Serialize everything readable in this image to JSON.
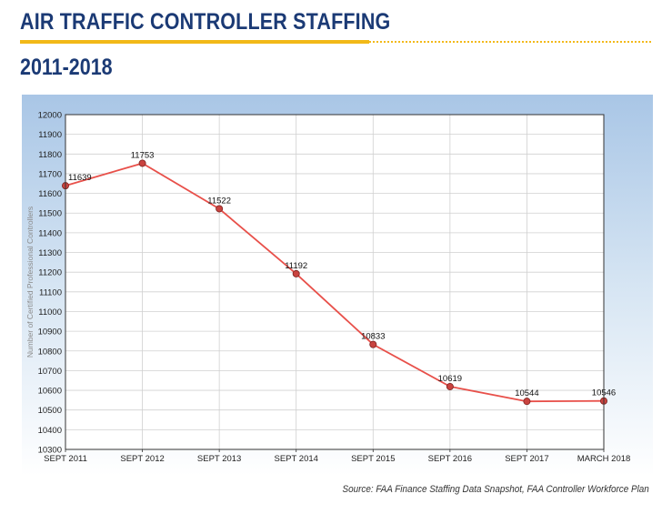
{
  "header": {
    "title": "AIR TRAFFIC CONTROLLER STAFFING",
    "subtitle": "2011-2018"
  },
  "colors": {
    "title": "#1b3a75",
    "accent_rule": "#f2b918",
    "line": "#e8504a",
    "marker_fill": "#c9433f",
    "plot_bg": "#ffffff"
  },
  "chart_data": {
    "type": "line",
    "title": "",
    "xlabel": "",
    "ylabel": "Number of Certified Professional Controllers",
    "categories": [
      "SEPT 2011",
      "SEPT 2012",
      "SEPT 2013",
      "SEPT 2014",
      "SEPT 2015",
      "SEPT 2016",
      "SEPT 2017",
      "MARCH 2018"
    ],
    "series": [
      {
        "values": [
          11639,
          11753,
          11522,
          11192,
          10833,
          10619,
          10544,
          10546
        ]
      }
    ],
    "ylim": [
      10300,
      12000
    ],
    "yticks": [
      10300,
      10400,
      10500,
      10600,
      10700,
      10800,
      10900,
      11000,
      11100,
      11200,
      11300,
      11400,
      11500,
      11600,
      11700,
      11800,
      11900,
      12000
    ],
    "grid": true,
    "legend": "none"
  },
  "source": "Source: FAA Finance Staffing Data Snapshot, FAA Controller Workforce Plan"
}
